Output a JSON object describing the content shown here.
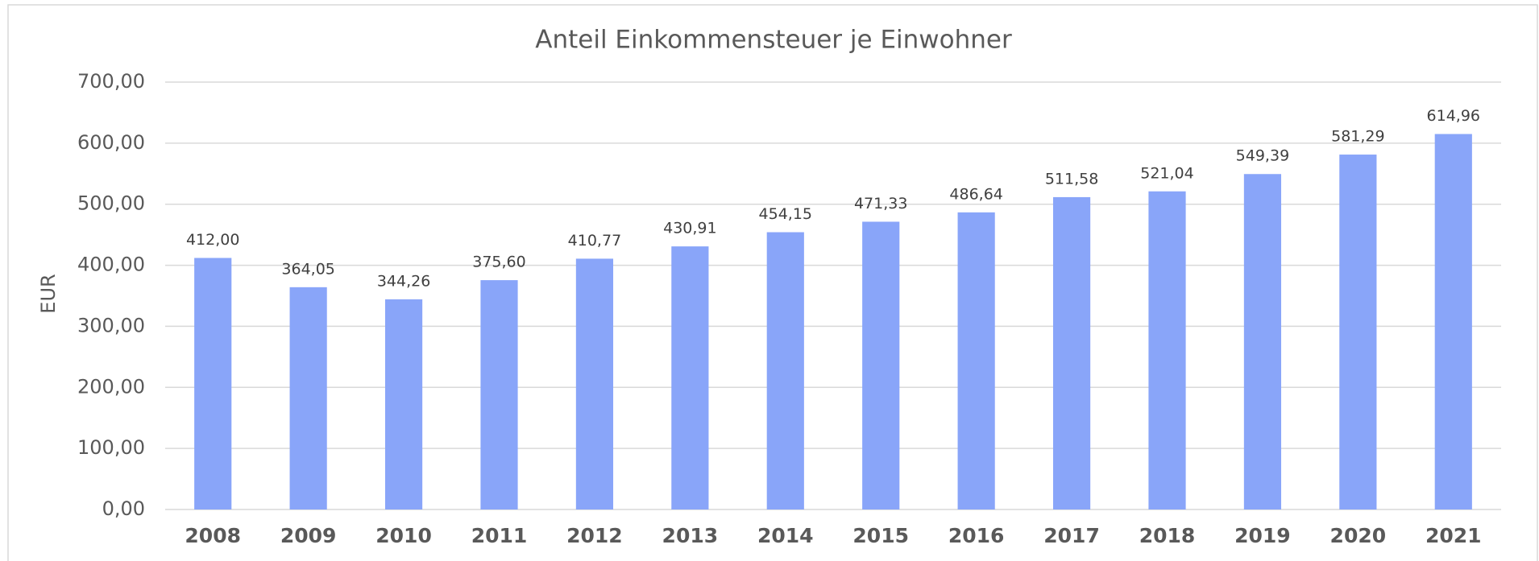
{
  "chart_data": {
    "type": "bar",
    "title": "Anteil Einkommensteuer je Einwohner",
    "y_label": "EUR",
    "categories": [
      "2008",
      "2009",
      "2010",
      "2011",
      "2012",
      "2013",
      "2014",
      "2015",
      "2016",
      "2017",
      "2018",
      "2019",
      "2020",
      "2021"
    ],
    "values": [
      412.0,
      364.05,
      344.26,
      375.6,
      410.77,
      430.91,
      454.15,
      471.33,
      486.64,
      511.58,
      521.04,
      549.39,
      581.29,
      614.96
    ],
    "value_labels": [
      "412,00",
      "364,05",
      "344,26",
      "375,60",
      "410,77",
      "430,91",
      "454,15",
      "471,33",
      "486,64",
      "511,58",
      "521,04",
      "549,39",
      "581,29",
      "614,96"
    ],
    "color": "#89a5f9",
    "ylim": [
      0,
      700
    ],
    "yticks": [
      {
        "value": 0,
        "label": "0,00"
      },
      {
        "value": 100,
        "label": "100,00"
      },
      {
        "value": 200,
        "label": "200,00"
      },
      {
        "value": 300,
        "label": "300,00"
      },
      {
        "value": 400,
        "label": "400,00"
      },
      {
        "value": 500,
        "label": "500,00"
      },
      {
        "value": 600,
        "label": "600,00"
      },
      {
        "value": 700,
        "label": "700,00"
      }
    ],
    "grid": true
  }
}
